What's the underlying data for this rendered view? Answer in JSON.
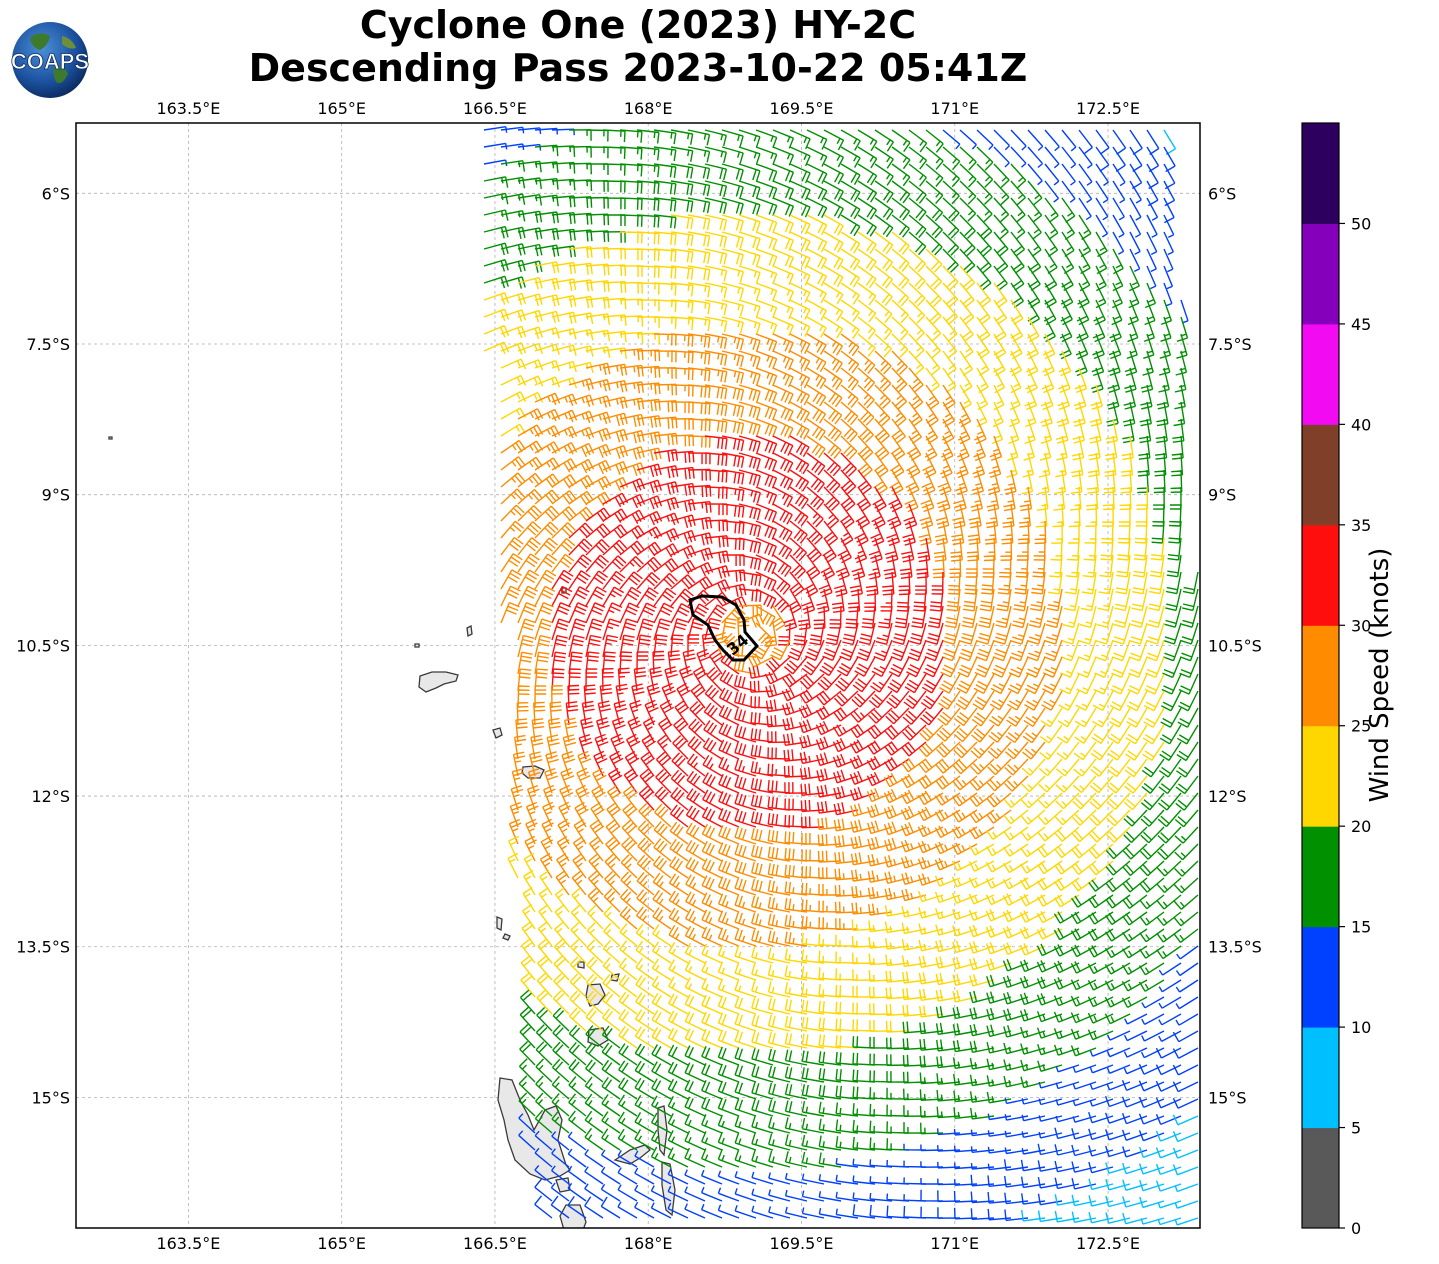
{
  "title": {
    "line1": "Cyclone One (2023) HY-2C",
    "line2": "Descending Pass 2023-10-22 05:41Z"
  },
  "logo": {
    "text": "COAPS"
  },
  "map": {
    "lon_range": [
      162.4,
      173.4
    ],
    "lat_range": [
      -16.3,
      -5.3
    ],
    "lon_ticks": [
      "163.5°E",
      "165°E",
      "166.5°E",
      "168°E",
      "169.5°E",
      "171°E",
      "172.5°E"
    ],
    "lat_ticks": [
      "6°S",
      "7.5°S",
      "9°S",
      "10.5°S",
      "12°S",
      "13.5°S",
      "15°S"
    ],
    "grid": true,
    "contour_label": "34",
    "storm_center": {
      "lon": 169.0,
      "lat": -10.4
    }
  },
  "colorbar": {
    "label": "Wind Speed (knots)",
    "ticks": [
      "0",
      "5",
      "10",
      "15",
      "20",
      "25",
      "30",
      "35",
      "40",
      "45",
      "50"
    ],
    "colors": [
      "#595959",
      "#00bfff",
      "#0040ff",
      "#009000",
      "#ffd700",
      "#ff8c00",
      "#ff0e0e",
      "#7f3f28",
      "#f20af2",
      "#8500bb",
      "#2d005f"
    ]
  }
}
